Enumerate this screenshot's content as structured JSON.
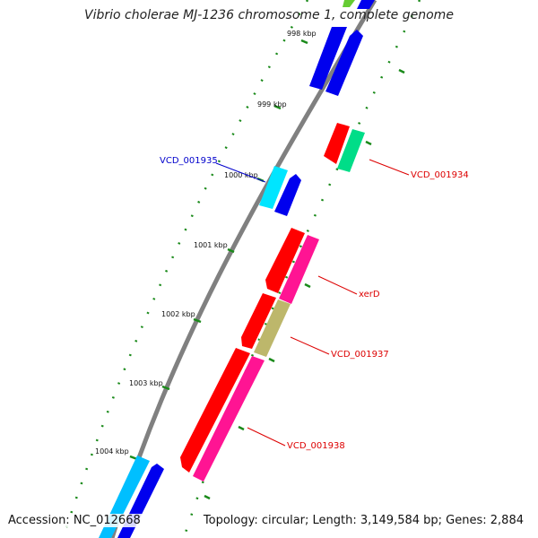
{
  "title": "Vibrio cholerae MJ-1236 chromosome 1, complete genome",
  "footer": {
    "accession": "Accession: NC_012668",
    "summary": "Topology: circular; Length: 3,149,584 bp; Genes: 2,884"
  },
  "tick_labels": [
    "998 kbp",
    "999 kbp",
    "1000 kbp",
    "1001 kbp",
    "1002 kbp",
    "1003 kbp",
    "1004 kbp"
  ],
  "colors": {
    "backbone": "#808080",
    "tick": "#1a8a1a",
    "red": "#ff0000",
    "blue": "#0000ee",
    "cyan": "#00ccff",
    "green": "#00dd88",
    "pink": "#ff1493",
    "olive": "#bdb76b",
    "label_blue": "#0000cc",
    "label_red": "#dd0000"
  },
  "gene_labels": [
    {
      "text": "VCD_001935",
      "color": "label_blue"
    },
    {
      "text": "VCD_001934",
      "color": "label_red"
    },
    {
      "text": "xerD",
      "color": "label_red"
    },
    {
      "text": "VCD_001937",
      "color": "label_red"
    },
    {
      "text": "VCD_001938",
      "color": "label_red"
    }
  ]
}
